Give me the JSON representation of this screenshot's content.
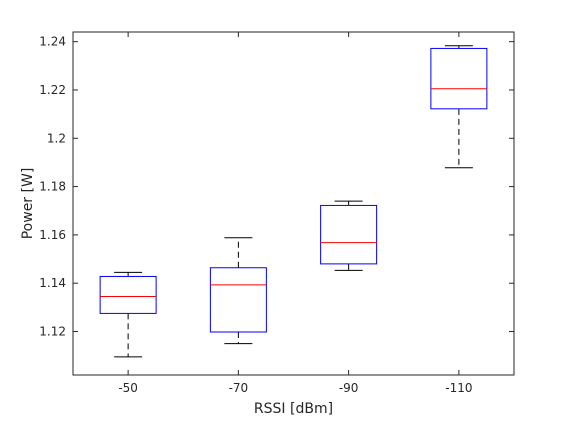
{
  "chart_data": {
    "type": "box",
    "xlabel": "RSSI [dBm]",
    "ylabel": "Power [W]",
    "ylim": [
      1.102,
      1.244
    ],
    "yticks": [
      1.12,
      1.14,
      1.16,
      1.18,
      1.2,
      1.22,
      1.24
    ],
    "ytick_labels": [
      "1.12",
      "1.14",
      "1.16",
      "1.18",
      "1.2",
      "1.22",
      "1.24"
    ],
    "grid": false,
    "categories": [
      "-50",
      "-70",
      "-90",
      "-110"
    ],
    "boxes": [
      {
        "category": "-50",
        "whisker_low": 1.1095,
        "q1": 1.1275,
        "median": 1.1345,
        "q3": 1.1428,
        "whisker_high": 1.1445
      },
      {
        "category": "-70",
        "whisker_low": 1.115,
        "q1": 1.1198,
        "median": 1.1393,
        "q3": 1.1464,
        "whisker_high": 1.1588
      },
      {
        "category": "-90",
        "whisker_low": 1.1453,
        "q1": 1.148,
        "median": 1.1568,
        "q3": 1.1722,
        "whisker_high": 1.174
      },
      {
        "category": "-110",
        "whisker_low": 1.1878,
        "q1": 1.2122,
        "median": 1.2205,
        "q3": 1.2372,
        "whisker_high": 1.2383
      }
    ],
    "colors": {
      "box": "#0000ff",
      "median": "#ff0000",
      "whisker": "#000000",
      "axis": "#262626"
    }
  }
}
